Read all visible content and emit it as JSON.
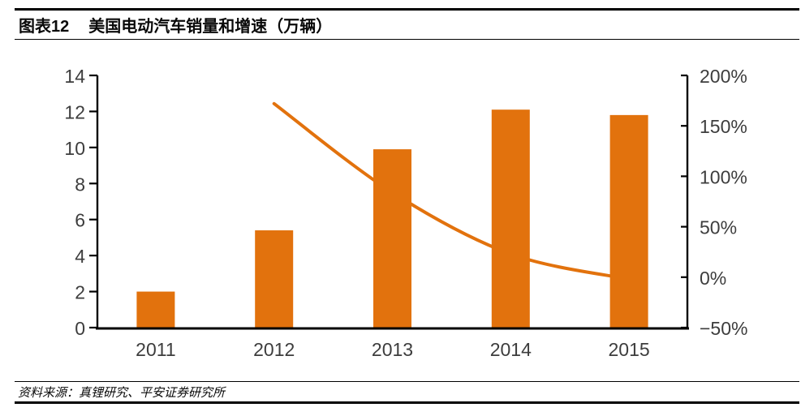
{
  "page": {
    "background": "#ffffff",
    "accent_color": "#e2720d",
    "axis_label_color": "#3d3d3d"
  },
  "header": {
    "figure_label": "图表12",
    "title": "美国电动汽车销量和增速（万辆）"
  },
  "footer": {
    "source": "资料来源：真锂研究、平安证券研究所"
  },
  "chart_data": {
    "type": "bar",
    "subtype": "bar-with-line-overlay",
    "title": "美国电动汽车销量和增速（万辆）",
    "categories": [
      "2011",
      "2012",
      "2013",
      "2014",
      "2015"
    ],
    "series": [
      {
        "name": "销量（万辆）",
        "type": "bar",
        "axis": "left",
        "color": "#e2720d",
        "values": [
          2.0,
          5.4,
          9.9,
          12.1,
          11.8
        ]
      },
      {
        "name": "增速",
        "type": "line",
        "axis": "right",
        "unit": "%",
        "color": "#e2720d",
        "values": [
          null,
          172,
          84,
          23,
          -2
        ]
      }
    ],
    "left_axis": {
      "min": 0,
      "max": 14,
      "step": 2,
      "tick_values": [
        0,
        2,
        4,
        6,
        8,
        10,
        12,
        14
      ],
      "tick_labels": [
        "0",
        "2",
        "4",
        "6",
        "8",
        "10",
        "12",
        "14"
      ]
    },
    "right_axis": {
      "min": -50,
      "max": 200,
      "step": 50,
      "tick_values": [
        -50,
        0,
        50,
        100,
        150,
        200
      ],
      "tick_labels": [
        "−50%",
        "0%",
        "50%",
        "100%",
        "150%",
        "200%"
      ]
    },
    "legend": "none",
    "grid": false,
    "line_smoothed": true
  }
}
